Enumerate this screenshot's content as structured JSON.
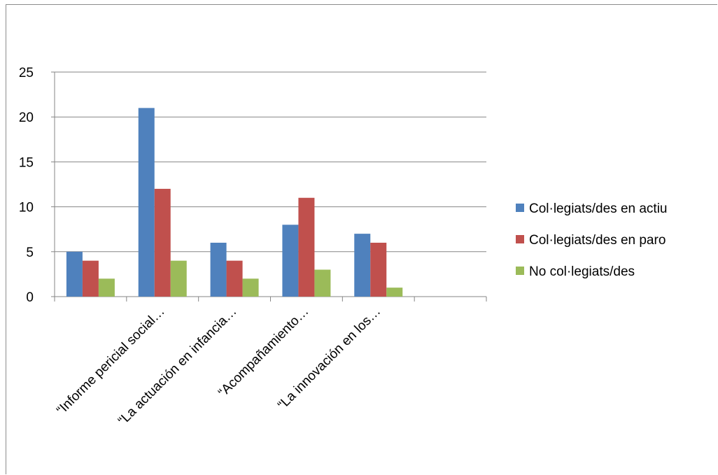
{
  "chart_data": {
    "type": "bar",
    "categories": [
      "",
      "“Informe pericial social…",
      "“La actuación en infancia…",
      "“Acompañamiento…",
      "“La innovación en los…",
      ""
    ],
    "series": [
      {
        "name": "Col·legiats/des en actiu",
        "color": "#4f81bd",
        "values": [
          5,
          21,
          6,
          8,
          7,
          null
        ]
      },
      {
        "name": "Col·legiats/des en paro",
        "color": "#c0504d",
        "values": [
          4,
          12,
          4,
          11,
          6,
          null
        ]
      },
      {
        "name": "No col·legiats/des",
        "color": "#9bbb59",
        "values": [
          2,
          4,
          2,
          3,
          1,
          null
        ]
      }
    ],
    "ylim": [
      0,
      25
    ],
    "yticks": [
      0,
      5,
      10,
      15,
      20,
      25
    ],
    "grid": true,
    "legend_position": "right",
    "title": "",
    "xlabel": "",
    "ylabel": ""
  }
}
